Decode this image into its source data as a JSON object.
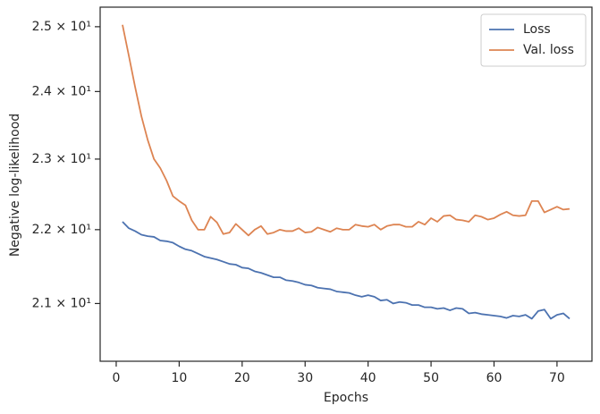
{
  "chart_data": {
    "type": "line",
    "xlabel": "Epochs",
    "ylabel": "Negative log-likelihood",
    "x": [
      1,
      2,
      3,
      4,
      5,
      6,
      7,
      8,
      9,
      10,
      11,
      12,
      13,
      14,
      15,
      16,
      17,
      18,
      19,
      20,
      21,
      22,
      23,
      24,
      25,
      26,
      27,
      28,
      29,
      30,
      31,
      32,
      33,
      34,
      35,
      36,
      37,
      38,
      39,
      40,
      41,
      42,
      43,
      44,
      45,
      46,
      47,
      48,
      49,
      50,
      51,
      52,
      53,
      54,
      55,
      56,
      57,
      58,
      59,
      60,
      61,
      62,
      63,
      64,
      65,
      66,
      67,
      68,
      69,
      70,
      71,
      72
    ],
    "series": [
      {
        "name": "Loss",
        "color": "#4c72b0",
        "values": [
          22.11,
          22.02,
          21.98,
          21.93,
          21.91,
          21.9,
          21.85,
          21.84,
          21.82,
          21.77,
          21.73,
          21.71,
          21.67,
          21.63,
          21.61,
          21.59,
          21.56,
          21.53,
          21.52,
          21.48,
          21.47,
          21.43,
          21.41,
          21.38,
          21.35,
          21.35,
          21.31,
          21.3,
          21.28,
          21.25,
          21.24,
          21.21,
          21.2,
          21.19,
          21.16,
          21.15,
          21.14,
          21.11,
          21.09,
          21.11,
          21.09,
          21.04,
          21.05,
          21.0,
          21.02,
          21.01,
          20.98,
          20.98,
          20.95,
          20.95,
          20.93,
          20.94,
          20.91,
          20.94,
          20.93,
          20.87,
          20.88,
          20.86,
          20.85,
          20.84,
          20.83,
          20.81,
          20.84,
          20.83,
          20.85,
          20.8,
          20.9,
          20.92,
          20.8,
          20.85,
          20.87,
          20.8
        ]
      },
      {
        "name": "Val. loss",
        "color": "#dd8452",
        "values": [
          25.03,
          24.55,
          24.07,
          23.63,
          23.28,
          23.0,
          22.87,
          22.69,
          22.47,
          22.4,
          22.34,
          22.13,
          22.0,
          22.0,
          22.18,
          22.1,
          21.94,
          21.96,
          22.08,
          22.0,
          21.92,
          22.0,
          22.05,
          21.94,
          21.96,
          22.0,
          21.98,
          21.98,
          22.02,
          21.96,
          21.97,
          22.03,
          22.0,
          21.97,
          22.02,
          22.0,
          22.0,
          22.07,
          22.05,
          22.04,
          22.07,
          22.0,
          22.05,
          22.07,
          22.07,
          22.04,
          22.04,
          22.11,
          22.07,
          22.16,
          22.11,
          22.19,
          22.2,
          22.14,
          22.13,
          22.11,
          22.2,
          22.18,
          22.14,
          22.16,
          22.21,
          22.25,
          22.2,
          22.19,
          22.2,
          22.4,
          22.4,
          22.24,
          22.28,
          22.32,
          22.28,
          22.29
        ]
      }
    ],
    "xlim": [
      -2.55,
      75.55
    ],
    "xticks": [
      0,
      10,
      20,
      30,
      40,
      50,
      60,
      70
    ],
    "ylim": [
      20.25,
      25.31
    ],
    "yscale": "log",
    "yticks": [
      {
        "value": 21,
        "label": "2.1 × 10¹"
      },
      {
        "value": 22,
        "label": "2.2 × 10¹"
      },
      {
        "value": 23,
        "label": "2.3 × 10¹"
      },
      {
        "value": 24,
        "label": "2.4 × 10¹"
      },
      {
        "value": 25,
        "label": "2.5 × 10¹"
      }
    ],
    "grid": false,
    "legend": "upper right"
  }
}
